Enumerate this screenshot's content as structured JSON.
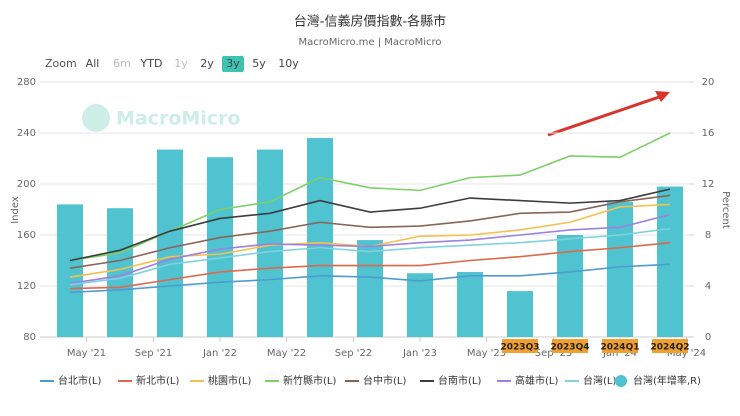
{
  "chart_data": {
    "type": "bar-line",
    "title": "台灣-信義房價指數-各縣市",
    "subtitle": "MacroMicro.me | MacroMicro",
    "watermark": "MacroMicro",
    "range_selector": {
      "label": "Zoom",
      "buttons": [
        "All",
        "6m",
        "YTD",
        "1y",
        "2y",
        "3y",
        "5y",
        "10y"
      ],
      "selected": "3y"
    },
    "y_label": "Index",
    "y2_label": "Percent",
    "categories": [
      null,
      null,
      null,
      null,
      null,
      null,
      null,
      null,
      null,
      "2023Q3",
      "2023Q4",
      "2024Q1",
      "2024Q2"
    ],
    "xlim": [
      -0.6,
      12.4
    ],
    "xticks": [
      {
        "value": 0.33,
        "label": "May '21"
      },
      {
        "value": 1.67,
        "label": "Sep '21"
      },
      {
        "value": 3,
        "label": "Jan '22"
      },
      {
        "value": 4.33,
        "label": "May '22"
      },
      {
        "value": 5.67,
        "label": "Sep '22"
      },
      {
        "value": 7,
        "label": "Jan '23"
      },
      {
        "value": 8.33,
        "label": "May '23"
      },
      {
        "value": 9.67,
        "label": "Sep '23"
      },
      {
        "value": 11,
        "label": "Jan '24"
      },
      {
        "value": 12.33,
        "label": "May '24"
      }
    ],
    "ylim": [
      80,
      280
    ],
    "yticks": [
      80,
      120,
      160,
      200,
      240,
      280
    ],
    "y2lim": [
      0,
      20
    ],
    "y2ticks": [
      0,
      4,
      8,
      12,
      16,
      20
    ],
    "grid": true,
    "series": [
      {
        "name": "台北市(L)",
        "kind": "line",
        "color": "#4f9bd0",
        "values": [
          115,
          117,
          120,
          123,
          125,
          128,
          127,
          124,
          128,
          128,
          131,
          135,
          137
        ]
      },
      {
        "name": "新北市(L)",
        "kind": "line",
        "color": "#e0674a",
        "values": [
          118,
          119,
          125,
          131,
          134,
          136,
          136,
          136,
          140,
          143,
          147,
          150,
          154
        ]
      },
      {
        "name": "桃園市(L)",
        "kind": "line",
        "color": "#f3c14e",
        "values": [
          127,
          133,
          143,
          145,
          152,
          154,
          151,
          159,
          160,
          164,
          170,
          182,
          184
        ]
      },
      {
        "name": "新竹縣市(L)",
        "kind": "line",
        "color": "#7dcf68",
        "values": [
          140,
          146,
          163,
          180,
          186,
          205,
          197,
          195,
          205,
          207,
          222,
          221,
          240
        ]
      },
      {
        "name": "台中市(L)",
        "kind": "line",
        "color": "#8b6459",
        "values": [
          134,
          140,
          150,
          158,
          163,
          170,
          166,
          167,
          171,
          177,
          178,
          186,
          191
        ]
      },
      {
        "name": "台南市(L)",
        "kind": "line",
        "color": "#3d3d3d",
        "values": [
          140,
          148,
          163,
          173,
          177,
          187,
          178,
          181,
          189,
          187,
          185,
          187,
          196
        ]
      },
      {
        "name": "高雄市(L)",
        "kind": "line",
        "color": "#9c80e2",
        "values": [
          122,
          128,
          141,
          149,
          153,
          152,
          151,
          154,
          156,
          160,
          164,
          166,
          176
        ]
      },
      {
        "name": "台灣(L)",
        "kind": "line",
        "color": "#80d2dc",
        "values": [
          121,
          126,
          137,
          142,
          147,
          150,
          147,
          150,
          152,
          154,
          157,
          160,
          165
        ]
      },
      {
        "name": "台灣(年增率,R)",
        "kind": "bar",
        "axis": "y2",
        "color": "#4fc3cf",
        "values": [
          10.4,
          10.1,
          14.7,
          14.1,
          14.7,
          15.6,
          7.6,
          5.0,
          5.1,
          3.6,
          8.0,
          10.6,
          11.8
        ]
      }
    ]
  }
}
